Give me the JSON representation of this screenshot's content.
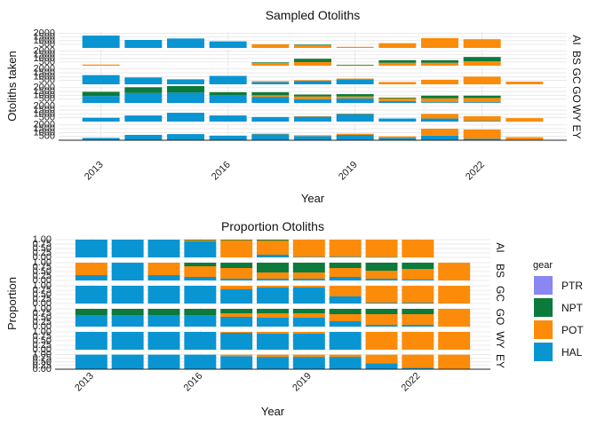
{
  "colors": {
    "PTR": "#8a86f2",
    "NPT": "#0b7a3b",
    "POT": "#fb8b08",
    "HAL": "#0994d2",
    "grid": "#e4e4e4",
    "axis": "#222222"
  },
  "legend": {
    "title": "gear",
    "items": [
      "PTR",
      "NPT",
      "POT",
      "HAL"
    ]
  },
  "chart_data": [
    {
      "type": "bar",
      "title": "Sampled Otoliths",
      "xlabel": "Year",
      "ylabel": "Otoliths taken",
      "x_ticks": [
        2013,
        2016,
        2019,
        2022
      ],
      "y_ticks": [
        500,
        1000,
        1500,
        2000
      ],
      "y_tick_labels": [
        "500",
        "1000",
        "1500",
        "2000"
      ],
      "ylim": [
        0,
        2200
      ],
      "xlim": [
        2012,
        2024
      ],
      "facets": [
        "AI",
        "BS",
        "GC",
        "GO",
        "WY",
        "EY"
      ],
      "series_order": [
        "HAL",
        "POT",
        "NPT",
        "PTR"
      ],
      "x": [
        2013,
        2014,
        2015,
        2016,
        2017,
        2018,
        2019,
        2020,
        2021,
        2022,
        2023
      ],
      "data": {
        "AI": {
          "HAL": [
            1700,
            1100,
            1300,
            900,
            0,
            0,
            0,
            0,
            0,
            0,
            null
          ],
          "POT": [
            0,
            0,
            0,
            0,
            500,
            350,
            150,
            650,
            1350,
            1200,
            null
          ],
          "NPT": [
            0,
            0,
            0,
            0,
            0,
            100,
            0,
            0,
            0,
            0,
            null
          ],
          "PTR": [
            0,
            0,
            0,
            0,
            0,
            0,
            0,
            0,
            0,
            0,
            null
          ]
        },
        "BS": {
          "HAL": [
            0,
            null,
            null,
            null,
            0,
            0,
            0,
            0,
            0,
            0,
            null
          ],
          "POT": [
            150,
            null,
            null,
            null,
            350,
            500,
            50,
            400,
            400,
            600,
            null
          ],
          "NPT": [
            0,
            null,
            null,
            null,
            100,
            450,
            80,
            350,
            350,
            600,
            null
          ],
          "PTR": [
            0,
            null,
            null,
            null,
            0,
            0,
            0,
            0,
            0,
            0,
            null
          ]
        },
        "GC": {
          "HAL": [
            1200,
            900,
            650,
            1100,
            300,
            450,
            650,
            0,
            0,
            0,
            0
          ],
          "POT": [
            0,
            0,
            0,
            0,
            100,
            100,
            100,
            300,
            600,
            1000,
            350
          ],
          "NPT": [
            0,
            0,
            0,
            0,
            0,
            0,
            0,
            0,
            0,
            0,
            0
          ],
          "PTR": [
            0,
            0,
            0,
            0,
            0,
            0,
            0,
            0,
            0,
            0,
            0
          ]
        },
        "GO": {
          "HAL": [
            900,
            1300,
            1350,
            1000,
            800,
            500,
            600,
            250,
            100,
            100,
            0
          ],
          "POT": [
            0,
            0,
            0,
            0,
            200,
            350,
            250,
            350,
            500,
            550,
            0
          ],
          "NPT": [
            550,
            750,
            850,
            400,
            400,
            250,
            300,
            100,
            350,
            300,
            0
          ],
          "PTR": [
            0,
            0,
            0,
            0,
            0,
            0,
            0,
            0,
            0,
            0,
            0
          ]
        },
        "WY": {
          "HAL": [
            500,
            800,
            1150,
            800,
            600,
            650,
            1000,
            400,
            400,
            100,
            0
          ],
          "POT": [
            0,
            0,
            0,
            0,
            0,
            50,
            50,
            0,
            600,
            600,
            450
          ],
          "NPT": [
            0,
            0,
            0,
            0,
            0,
            0,
            0,
            0,
            0,
            0,
            0
          ],
          "PTR": [
            0,
            0,
            0,
            0,
            0,
            0,
            0,
            0,
            0,
            0,
            0
          ]
        },
        "EY": {
          "HAL": [
            300,
            700,
            800,
            600,
            800,
            550,
            700,
            300,
            600,
            200,
            0
          ],
          "POT": [
            0,
            0,
            0,
            0,
            50,
            100,
            150,
            200,
            900,
            1200,
            400
          ],
          "NPT": [
            0,
            0,
            0,
            0,
            0,
            0,
            0,
            0,
            0,
            0,
            0
          ],
          "PTR": [
            0,
            0,
            0,
            0,
            0,
            0,
            0,
            0,
            0,
            0,
            0
          ]
        }
      }
    },
    {
      "type": "bar",
      "title": "Proportion Otoliths",
      "xlabel": "Year",
      "ylabel": "Proportion",
      "x_ticks": [
        2013,
        2016,
        2019,
        2022
      ],
      "y_ticks": [
        0,
        0.25,
        0.5,
        0.75,
        1
      ],
      "y_tick_labels": [
        "0.00",
        "0.25",
        "0.50",
        "0.75",
        "1.00"
      ],
      "ylim": [
        0,
        1.1
      ],
      "xlim": [
        2012,
        2024
      ],
      "facets": [
        "AI",
        "BS",
        "GC",
        "GO",
        "WY",
        "EY"
      ],
      "series_order": [
        "HAL",
        "POT",
        "NPT",
        "PTR"
      ],
      "x": [
        2013,
        2014,
        2015,
        2016,
        2017,
        2018,
        2019,
        2020,
        2021,
        2022,
        2023
      ],
      "data": {
        "AI": {
          "HAL": [
            1,
            1,
            1,
            0.9,
            0,
            0.15,
            0.03,
            0.04,
            0.02,
            0,
            null
          ],
          "POT": [
            0,
            0,
            0,
            0.06,
            0.98,
            0.8,
            0.97,
            0.96,
            0.98,
            1,
            null
          ],
          "NPT": [
            0,
            0,
            0,
            0.04,
            0.02,
            0.05,
            0,
            0,
            0,
            0,
            null
          ],
          "PTR": [
            0,
            0,
            0,
            0,
            0,
            0,
            0,
            0,
            0,
            0,
            null
          ]
        },
        "BS": {
          "HAL": [
            0.3,
            1,
            0.3,
            0.2,
            0.1,
            0.1,
            0.1,
            0.2,
            0.1,
            0.05,
            0
          ],
          "POT": [
            0.7,
            0,
            0.7,
            0.6,
            0.6,
            0.35,
            0.35,
            0.5,
            0.45,
            0.6,
            1
          ],
          "NPT": [
            0,
            0,
            0,
            0.2,
            0.3,
            0.55,
            0.55,
            0.3,
            0.45,
            0.35,
            0
          ],
          "PTR": [
            0,
            0,
            0,
            0,
            0,
            0,
            0,
            0,
            0,
            0,
            0
          ]
        },
        "GC": {
          "HAL": [
            1,
            1,
            1,
            1,
            0.8,
            0.9,
            0.9,
            0.4,
            0.05,
            0.05,
            0
          ],
          "POT": [
            0,
            0,
            0,
            0,
            0.2,
            0.1,
            0.1,
            0.6,
            0.95,
            0.95,
            1
          ],
          "NPT": [
            0,
            0,
            0,
            0,
            0,
            0,
            0,
            0,
            0,
            0,
            0
          ],
          "PTR": [
            0,
            0,
            0,
            0,
            0,
            0,
            0,
            0,
            0,
            0,
            0
          ]
        },
        "GO": {
          "HAL": [
            0.65,
            0.65,
            0.65,
            0.65,
            0.55,
            0.5,
            0.5,
            0.3,
            0.1,
            0.1,
            0
          ],
          "POT": [
            0,
            0,
            0,
            0,
            0.2,
            0.25,
            0.25,
            0.4,
            0.6,
            0.6,
            1
          ],
          "NPT": [
            0.35,
            0.35,
            0.35,
            0.35,
            0.25,
            0.25,
            0.25,
            0.3,
            0.3,
            0.3,
            0
          ],
          "PTR": [
            0,
            0,
            0,
            0,
            0,
            0,
            0,
            0,
            0,
            0,
            0
          ]
        },
        "WY": {
          "HAL": [
            1,
            1,
            1,
            1,
            0.95,
            0.9,
            0.9,
            1,
            0,
            0,
            0
          ],
          "POT": [
            0,
            0,
            0,
            0,
            0.05,
            0.1,
            0.1,
            0,
            1,
            1,
            1
          ],
          "NPT": [
            0,
            0,
            0,
            0,
            0,
            0,
            0,
            0,
            0,
            0,
            0
          ],
          "PTR": [
            0,
            0,
            0,
            0,
            0,
            0,
            0,
            0,
            0,
            0,
            0
          ]
        },
        "EY": {
          "HAL": [
            1,
            1,
            1,
            1,
            0.9,
            0.85,
            0.85,
            0.85,
            0.4,
            0.1,
            0
          ],
          "POT": [
            0,
            0,
            0,
            0,
            0.1,
            0.15,
            0.15,
            0.15,
            0.6,
            0.9,
            1
          ],
          "NPT": [
            0,
            0,
            0,
            0,
            0,
            0,
            0,
            0,
            0,
            0,
            0
          ],
          "PTR": [
            0,
            0,
            0,
            0,
            0,
            0,
            0,
            0,
            0,
            0,
            0
          ]
        }
      }
    }
  ]
}
